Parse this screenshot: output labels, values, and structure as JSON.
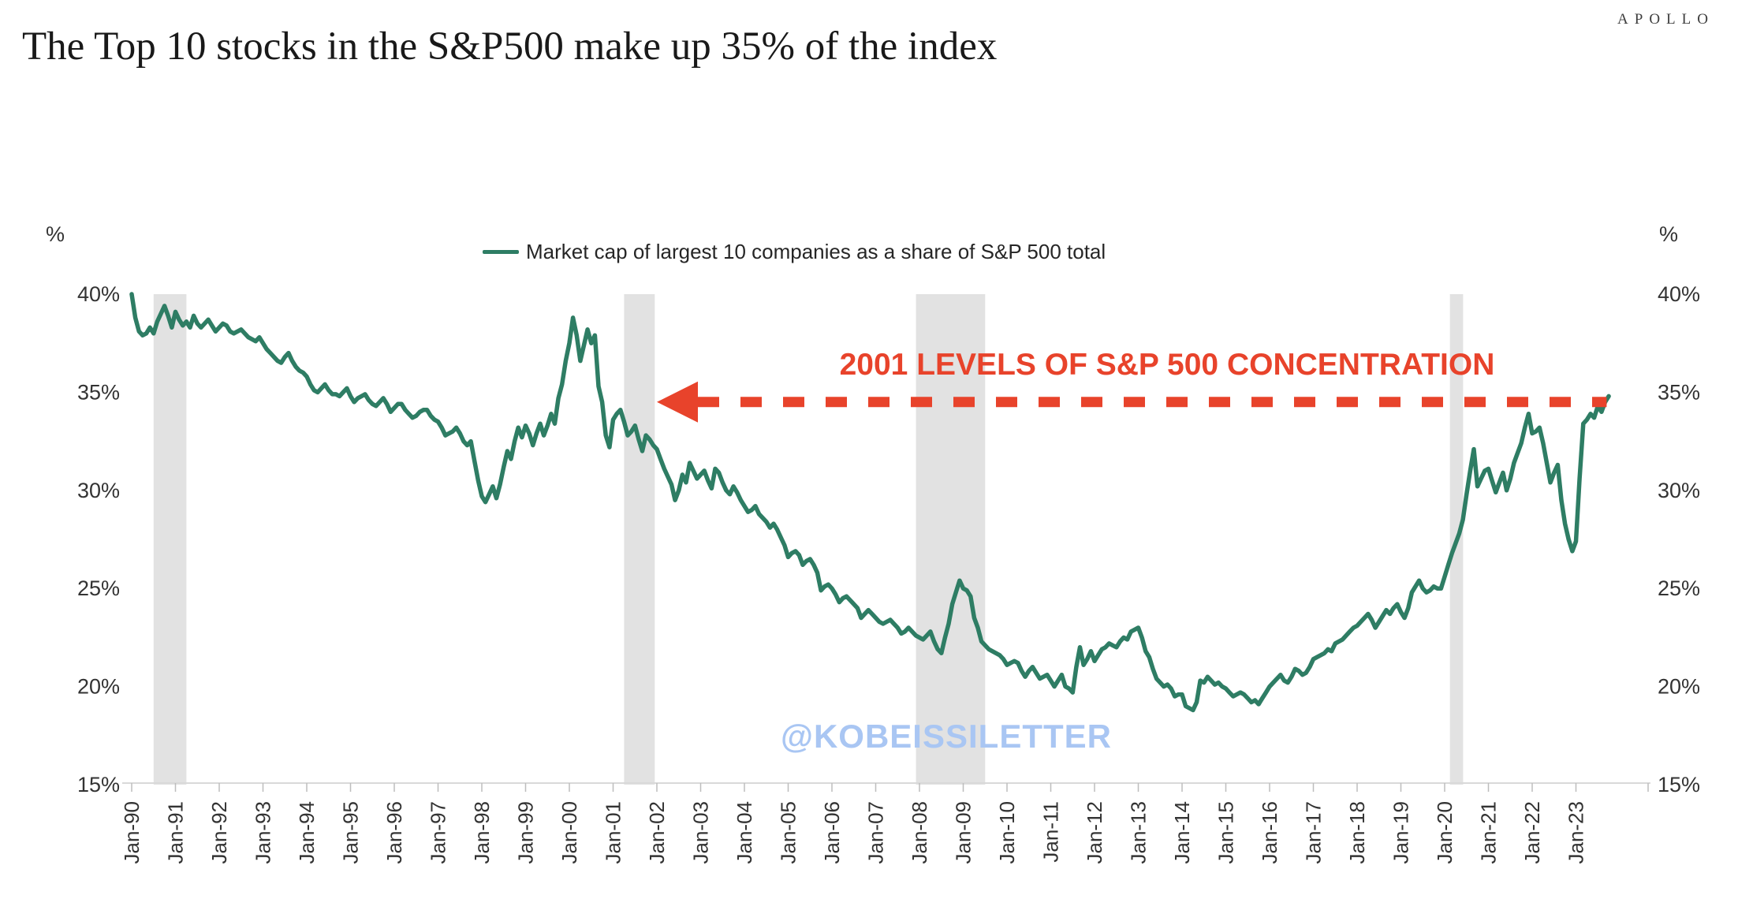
{
  "header": {
    "brand": "APOLLO",
    "title": "The Top 10 stocks in the S&P500 make up 35% of the index"
  },
  "legend": {
    "label": "Market cap of largest 10 companies as a share of S&P 500 total"
  },
  "annotation": {
    "text": "2001 LEVELS OF S&P 500 CONCENTRATION"
  },
  "watermark": {
    "text": "@KOBEISSILETTER"
  },
  "axes": {
    "y_unit": "%",
    "y_tick_labels": [
      "40%",
      "35%",
      "30%",
      "25%",
      "20%",
      "15%"
    ],
    "x_tick_labels": [
      "Jan-90",
      "Jan-91",
      "Jan-92",
      "Jan-93",
      "Jan-94",
      "Jan-95",
      "Jan-96",
      "Jan-97",
      "Jan-98",
      "Jan-99",
      "Jan-00",
      "Jan-01",
      "Jan-02",
      "Jan-03",
      "Jan-04",
      "Jan-05",
      "Jan-06",
      "Jan-07",
      "Jan-08",
      "Jan-09",
      "Jan-10",
      "Jan-11",
      "Jan-12",
      "Jan-13",
      "Jan-14",
      "Jan-15",
      "Jan-16",
      "Jan-17",
      "Jan-18",
      "Jan-19",
      "Jan-20",
      "Jan-21",
      "Jan-22",
      "Jan-23"
    ]
  },
  "colors": {
    "line_green": "#2e7d64",
    "annotation_red": "#e8432b",
    "watermark_blue": "#a9c6f3",
    "recession_band": "#e2e2e2",
    "axis_text": "#333333",
    "axis_line": "#d9d9d9",
    "tick_line": "#bdbdbd"
  },
  "chart_data": {
    "type": "line",
    "title": "The Top 10 stocks in the S&P500 make up 35% of the index",
    "xlabel": "",
    "ylabel": "%",
    "ylim": [
      15,
      40
    ],
    "grid": "off",
    "legend_position": "top-center",
    "y_ticks_percent": [
      40,
      35,
      30,
      25,
      20,
      15
    ],
    "x_tick_labels": [
      "Jan-90",
      "Jan-91",
      "Jan-92",
      "Jan-93",
      "Jan-94",
      "Jan-95",
      "Jan-96",
      "Jan-97",
      "Jan-98",
      "Jan-99",
      "Jan-00",
      "Jan-01",
      "Jan-02",
      "Jan-03",
      "Jan-04",
      "Jan-05",
      "Jan-06",
      "Jan-07",
      "Jan-08",
      "Jan-09",
      "Jan-10",
      "Jan-11",
      "Jan-12",
      "Jan-13",
      "Jan-14",
      "Jan-15",
      "Jan-16",
      "Jan-17",
      "Jan-18",
      "Jan-19",
      "Jan-20",
      "Jan-21",
      "Jan-22",
      "Jan-23"
    ],
    "recession_shading_year_ranges": [
      [
        1990.5,
        1991.25
      ],
      [
        2001.25,
        2001.95
      ],
      [
        2007.92,
        2009.5
      ],
      [
        2020.12,
        2020.42
      ]
    ],
    "annotation": {
      "text": "2001 LEVELS OF S&P 500 CONCENTRATION",
      "arrow_y_percent": 34.5,
      "arrow_to_year": 2002.0,
      "arrow_from_year": 2023.7
    },
    "series": [
      {
        "name": "Market cap of largest 10 companies as a share of S&P 500 total",
        "frequency": "monthly",
        "start": "Jan-1990",
        "end": "Oct-2023",
        "unit": "percent",
        "values": [
          40.0,
          38.8,
          38.1,
          37.9,
          38.0,
          38.3,
          38.0,
          38.6,
          39.0,
          39.4,
          38.9,
          38.3,
          39.1,
          38.7,
          38.4,
          38.6,
          38.3,
          38.9,
          38.5,
          38.3,
          38.5,
          38.7,
          38.4,
          38.1,
          38.3,
          38.5,
          38.4,
          38.1,
          38.0,
          38.1,
          38.2,
          38.0,
          37.8,
          37.7,
          37.6,
          37.8,
          37.5,
          37.2,
          37.0,
          36.8,
          36.6,
          36.5,
          36.8,
          37.0,
          36.6,
          36.3,
          36.1,
          36.0,
          35.8,
          35.4,
          35.1,
          35.0,
          35.2,
          35.4,
          35.1,
          34.9,
          34.9,
          34.8,
          35.0,
          35.2,
          34.8,
          34.5,
          34.7,
          34.8,
          34.9,
          34.6,
          34.4,
          34.3,
          34.5,
          34.7,
          34.4,
          34.0,
          34.2,
          34.4,
          34.4,
          34.1,
          33.9,
          33.7,
          33.8,
          34.0,
          34.1,
          34.1,
          33.8,
          33.6,
          33.5,
          33.2,
          32.8,
          32.9,
          33.0,
          33.2,
          32.9,
          32.5,
          32.3,
          32.5,
          31.5,
          30.5,
          29.7,
          29.4,
          29.8,
          30.2,
          29.6,
          30.3,
          31.2,
          32.0,
          31.6,
          32.5,
          33.2,
          32.7,
          33.3,
          32.9,
          32.3,
          32.9,
          33.4,
          32.8,
          33.3,
          33.9,
          33.4,
          34.7,
          35.4,
          36.6,
          37.5,
          38.8,
          37.9,
          36.6,
          37.4,
          38.2,
          37.5,
          37.9,
          35.3,
          34.5,
          32.8,
          32.2,
          33.6,
          33.9,
          34.1,
          33.5,
          32.8,
          33.0,
          33.3,
          32.6,
          32.0,
          32.8,
          32.6,
          32.3,
          32.1,
          31.6,
          31.1,
          30.7,
          30.3,
          29.5,
          30.0,
          30.8,
          30.4,
          31.4,
          31.0,
          30.6,
          30.8,
          31.0,
          30.5,
          30.1,
          31.1,
          30.9,
          30.4,
          30.0,
          29.8,
          30.2,
          29.9,
          29.5,
          29.2,
          28.9,
          29.0,
          29.2,
          28.8,
          28.6,
          28.4,
          28.1,
          28.3,
          28.0,
          27.6,
          27.2,
          26.6,
          26.8,
          26.9,
          26.7,
          26.2,
          26.4,
          26.5,
          26.2,
          25.8,
          24.9,
          25.1,
          25.2,
          25.0,
          24.7,
          24.3,
          24.5,
          24.6,
          24.4,
          24.2,
          24.0,
          23.5,
          23.7,
          23.9,
          23.7,
          23.5,
          23.3,
          23.2,
          23.3,
          23.4,
          23.2,
          23.0,
          22.7,
          22.8,
          23.0,
          22.8,
          22.6,
          22.5,
          22.4,
          22.6,
          22.8,
          22.3,
          21.9,
          21.7,
          22.5,
          23.2,
          24.2,
          24.8,
          25.4,
          25.0,
          24.9,
          24.6,
          23.5,
          23.0,
          22.3,
          22.1,
          21.9,
          21.8,
          21.7,
          21.6,
          21.4,
          21.1,
          21.2,
          21.3,
          21.2,
          20.8,
          20.5,
          20.8,
          21.0,
          20.7,
          20.4,
          20.5,
          20.6,
          20.3,
          20.0,
          20.3,
          20.6,
          20.0,
          19.9,
          19.7,
          21.0,
          22.0,
          21.1,
          21.4,
          21.8,
          21.3,
          21.6,
          21.9,
          22.0,
          22.2,
          22.1,
          22.0,
          22.3,
          22.5,
          22.4,
          22.8,
          22.9,
          23.0,
          22.5,
          21.8,
          21.5,
          20.9,
          20.4,
          20.2,
          20.0,
          20.1,
          19.9,
          19.5,
          19.6,
          19.6,
          19.0,
          18.9,
          18.8,
          19.2,
          20.3,
          20.2,
          20.5,
          20.3,
          20.1,
          20.2,
          20.0,
          19.9,
          19.7,
          19.5,
          19.6,
          19.7,
          19.6,
          19.4,
          19.2,
          19.3,
          19.1,
          19.4,
          19.7,
          20.0,
          20.2,
          20.4,
          20.6,
          20.3,
          20.2,
          20.5,
          20.9,
          20.8,
          20.6,
          20.7,
          21.0,
          21.4,
          21.5,
          21.6,
          21.7,
          21.9,
          21.8,
          22.2,
          22.3,
          22.4,
          22.6,
          22.8,
          23.0,
          23.1,
          23.3,
          23.5,
          23.7,
          23.4,
          23.0,
          23.3,
          23.6,
          23.9,
          23.7,
          24.0,
          24.2,
          23.8,
          23.5,
          24.0,
          24.8,
          25.1,
          25.4,
          25.0,
          24.8,
          24.9,
          25.1,
          25.0,
          25.0,
          25.6,
          26.2,
          26.8,
          27.3,
          27.8,
          28.5,
          29.8,
          31.0,
          32.1,
          30.2,
          30.6,
          31.0,
          31.1,
          30.5,
          29.9,
          30.4,
          30.9,
          30.0,
          30.6,
          31.4,
          31.9,
          32.4,
          33.2,
          33.9,
          32.9,
          33.0,
          33.2,
          32.4,
          31.4,
          30.4,
          30.9,
          31.3,
          29.5,
          28.3,
          27.5,
          26.9,
          27.4,
          30.6,
          33.4,
          33.6,
          33.9,
          33.7,
          34.3,
          34.0,
          34.5,
          34.8
        ]
      }
    ]
  }
}
